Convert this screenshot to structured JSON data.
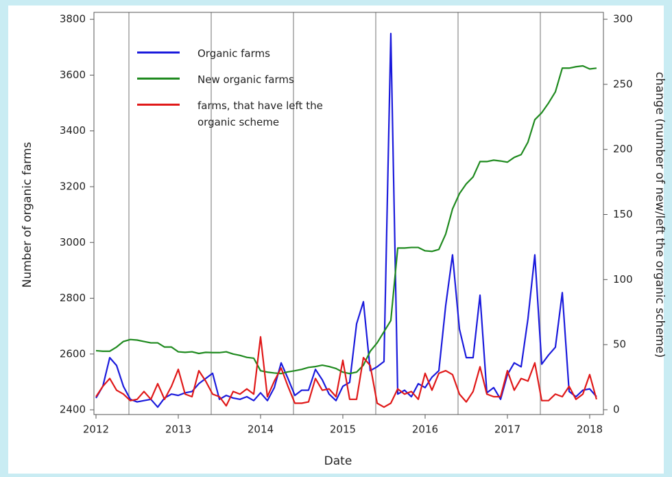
{
  "chart_data": {
    "type": "line",
    "xlabel": "Date",
    "ylabel": "Number of organic farms",
    "y2label": "change (number of new/left the organic scheme)",
    "x": [
      2012.0,
      2012.083,
      2012.167,
      2012.25,
      2012.333,
      2012.417,
      2012.5,
      2012.583,
      2012.667,
      2012.75,
      2012.833,
      2012.917,
      2013.0,
      2013.083,
      2013.167,
      2013.25,
      2013.333,
      2013.417,
      2013.5,
      2013.583,
      2013.667,
      2013.75,
      2013.833,
      2013.917,
      2014.0,
      2014.083,
      2014.167,
      2014.25,
      2014.333,
      2014.417,
      2014.5,
      2014.583,
      2014.667,
      2014.75,
      2014.833,
      2014.917,
      2015.0,
      2015.083,
      2015.167,
      2015.25,
      2015.333,
      2015.417,
      2015.5,
      2015.583,
      2015.667,
      2015.75,
      2015.833,
      2015.917,
      2016.0,
      2016.083,
      2016.167,
      2016.25,
      2016.333,
      2016.417,
      2016.5,
      2016.583,
      2016.667,
      2016.75,
      2016.833,
      2016.917,
      2017.0,
      2017.083,
      2017.167,
      2017.25,
      2017.333,
      2017.417,
      2017.5,
      2017.583,
      2017.667,
      2017.75,
      2017.833,
      2017.917,
      2018.0,
      2018.083
    ],
    "series": [
      {
        "name": "Organic farms",
        "color": "#1a1adc",
        "axis": "y2",
        "values": [
          9,
          18,
          40,
          34,
          18,
          8,
          6,
          7,
          8,
          2,
          9,
          12,
          11,
          13,
          14,
          20,
          24,
          28,
          8,
          11,
          9,
          8,
          10,
          7,
          13,
          7,
          17,
          36,
          24,
          11,
          15,
          15,
          31,
          23,
          12,
          7,
          18,
          21,
          66,
          83,
          30,
          33,
          37,
          289,
          12,
          15,
          10,
          20,
          17,
          25,
          30,
          80,
          119,
          62,
          40,
          40,
          88,
          13,
          17,
          8,
          27,
          36,
          33,
          70,
          119,
          35,
          42,
          48,
          90,
          14,
          10,
          15,
          16,
          10
        ]
      },
      {
        "name": "New organic farms",
        "color": "#1f8a1f",
        "axis": "y",
        "values": [
          2612,
          2610,
          2610,
          2625,
          2645,
          2652,
          2650,
          2645,
          2640,
          2640,
          2625,
          2625,
          2608,
          2606,
          2608,
          2602,
          2606,
          2605,
          2605,
          2608,
          2600,
          2595,
          2588,
          2585,
          2540,
          2535,
          2532,
          2530,
          2536,
          2540,
          2545,
          2552,
          2555,
          2560,
          2555,
          2548,
          2535,
          2530,
          2535,
          2560,
          2610,
          2640,
          2680,
          2720,
          2980,
          2980,
          2982,
          2982,
          2970,
          2968,
          2975,
          3030,
          3120,
          3175,
          3210,
          3235,
          3290,
          3290,
          3295,
          3292,
          3288,
          3305,
          3315,
          3360,
          3440,
          3465,
          3500,
          3540,
          3625,
          3625,
          3630,
          3633,
          3622,
          3625
        ]
      },
      {
        "name": "farms, that have left the organic scheme",
        "color": "#e01818",
        "axis": "y2",
        "values": [
          10,
          18,
          24,
          15,
          12,
          7,
          8,
          14,
          8,
          20,
          8,
          18,
          31,
          12,
          10,
          30,
          22,
          12,
          10,
          3,
          14,
          12,
          16,
          12,
          56,
          10,
          22,
          32,
          18,
          5,
          5,
          6,
          24,
          15,
          16,
          10,
          38,
          8,
          8,
          40,
          34,
          5,
          2,
          5,
          16,
          12,
          14,
          8,
          28,
          15,
          28,
          30,
          27,
          12,
          6,
          14,
          33,
          12,
          10,
          10,
          30,
          15,
          24,
          22,
          36,
          7,
          7,
          12,
          10,
          18,
          8,
          12,
          27,
          8
        ]
      }
    ],
    "xlim": [
      2011.975,
      2018.167
    ],
    "xticks": [
      2012,
      2013,
      2014,
      2015,
      2016,
      2017,
      2018
    ],
    "xgrid": [
      2012.4,
      2013.4,
      2014.4,
      2015.4,
      2016.4,
      2017.4
    ],
    "ylim": [
      2383,
      3825
    ],
    "yticks": [
      2400,
      2600,
      2800,
      3000,
      3200,
      3400,
      3600,
      3800
    ],
    "y2lim": [
      -3.7,
      305.3
    ],
    "y2ticks": [
      0,
      50,
      100,
      150,
      200,
      250,
      300
    ],
    "legend": "upper left"
  }
}
